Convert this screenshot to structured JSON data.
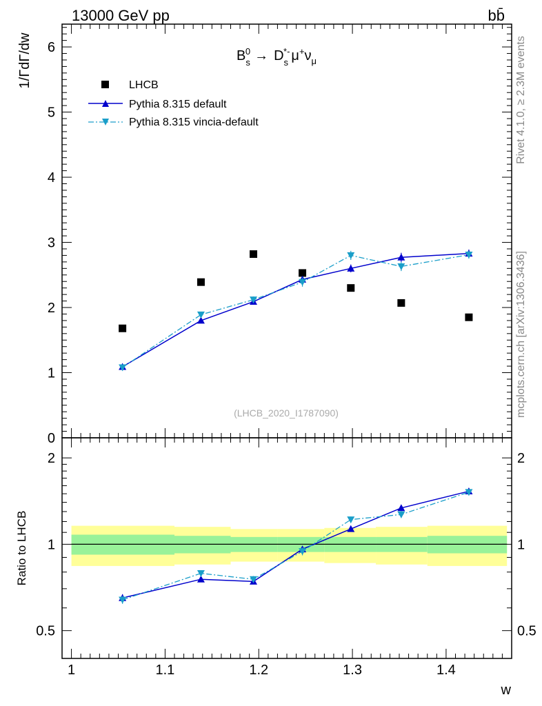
{
  "header": {
    "energy_label": "13000 GeV pp",
    "process_label": "bb̄"
  },
  "side_labels": {
    "rivet": "Rivet 4.1.0, ≥ 2.3M events",
    "mcplots": "mcplots.cern.ch [arXiv:1306.3436]"
  },
  "colors": {
    "data": "#000000",
    "pythia_default": "#0000cc",
    "vincia": "#1a9ec9",
    "band_inner": "#99f299",
    "band_outer": "#ffff99"
  },
  "chart_data": [
    {
      "type": "line",
      "panel": "main",
      "title": "B_s^0 → D_s^*- μ^+ ν_μ",
      "title_parts": {
        "b": "B",
        "b_sub": "s",
        "b_sup": "0",
        "arrow": "→",
        "d": "D",
        "d_sub": "s",
        "d_sup": "*-",
        "mu": "μ",
        "mu_sup": "+",
        "nu": "ν",
        "nu_sub": "μ"
      },
      "ylabel": "1/ΓdΓ/dw",
      "xlabel": "w",
      "analysis_label": "(LHCB_2020_I1787090)",
      "xlim": [
        0.99,
        1.47
      ],
      "ylim": [
        0,
        6.35
      ],
      "yticks": [
        0,
        1,
        2,
        3,
        4,
        5,
        6
      ],
      "x": [
        1.0545,
        1.1383,
        1.1943,
        1.2466,
        1.2983,
        1.3521,
        1.4243
      ],
      "series": [
        {
          "name": "LHCB",
          "marker": "square",
          "values": [
            1.68,
            2.39,
            2.82,
            2.53,
            2.3,
            2.07,
            1.85
          ],
          "errors": [
            0.03,
            0.04,
            0.04,
            0.04,
            0.04,
            0.04,
            0.04
          ]
        },
        {
          "name": "Pythia 8.315 default",
          "marker": "triangle-up",
          "style": "solid",
          "values": [
            1.09,
            1.8,
            2.09,
            2.43,
            2.6,
            2.77,
            2.83
          ],
          "errors": [
            0.03,
            0.03,
            0.04,
            0.05,
            0.06,
            0.07,
            0.06
          ]
        },
        {
          "name": "Pythia 8.315 vincia-default",
          "marker": "triangle-down",
          "style": "dashdot",
          "values": [
            1.08,
            1.89,
            2.12,
            2.39,
            2.8,
            2.63,
            2.81
          ],
          "errors": [
            0.03,
            0.04,
            0.05,
            0.07,
            0.07,
            0.07,
            0.06
          ]
        }
      ]
    },
    {
      "type": "line",
      "panel": "ratio",
      "ylabel": "Ratio to LHCB",
      "xlabel": "w",
      "xlim": [
        0.99,
        1.47
      ],
      "ylim": [
        0.4,
        2.35
      ],
      "log_y": true,
      "yticks": [
        0.5,
        1,
        2
      ],
      "ytick_labels": [
        "0.5",
        "1",
        "2"
      ],
      "xticks": [
        1,
        1.1,
        1.2,
        1.3,
        1.4
      ],
      "xtick_labels": [
        "1",
        "1.1",
        "1.2",
        "1.3",
        "1.4"
      ],
      "x": [
        1.0545,
        1.1383,
        1.1943,
        1.2466,
        1.2983,
        1.3521,
        1.4243
      ],
      "bands": {
        "edges": [
          1.0,
          1.11,
          1.17,
          1.22,
          1.27,
          1.325,
          1.38,
          1.465
        ],
        "inner": [
          0.08,
          0.07,
          0.06,
          0.06,
          0.06,
          0.06,
          0.07
        ],
        "outer": [
          0.16,
          0.15,
          0.13,
          0.13,
          0.14,
          0.15,
          0.16
        ]
      },
      "series": [
        {
          "name": "Pythia 8.315 default",
          "marker": "triangle-up",
          "style": "solid",
          "values": [
            0.65,
            0.755,
            0.742,
            0.961,
            1.131,
            1.338,
            1.53
          ],
          "errors": [
            0.02,
            0.015,
            0.015,
            0.02,
            0.025,
            0.03,
            0.03
          ]
        },
        {
          "name": "Pythia 8.315 vincia-default",
          "marker": "triangle-down",
          "style": "dashdot",
          "values": [
            0.64,
            0.792,
            0.755,
            0.945,
            1.219,
            1.27,
            1.519
          ],
          "errors": [
            0.02,
            0.02,
            0.02,
            0.03,
            0.03,
            0.035,
            0.03
          ]
        }
      ]
    }
  ]
}
